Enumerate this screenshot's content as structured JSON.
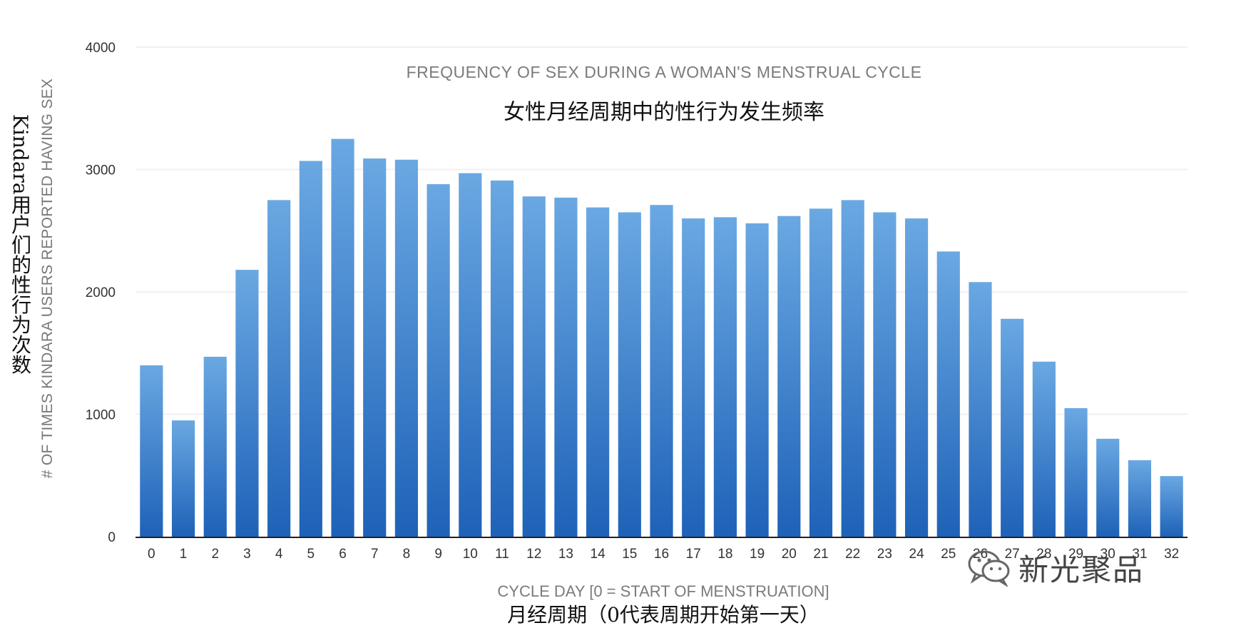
{
  "chart_data": {
    "type": "bar",
    "title": "FREQUENCY OF SEX DURING A WOMAN'S MENSTRUAL CYCLE",
    "subtitle": "女性月经周期中的性行为发生频率",
    "xlabel": "CYCLE DAY [0 = START OF MENSTRUATION]",
    "xlabel_cn": "月经周期（0代表周期开始第一天）",
    "ylabel": "# OF TIMES KINDARA USERS REPORTED HAVING SEX",
    "ylabel_cn": "Kindara用户们的性行为次数",
    "categories": [
      "0",
      "1",
      "2",
      "3",
      "4",
      "5",
      "6",
      "7",
      "8",
      "9",
      "10",
      "11",
      "12",
      "13",
      "14",
      "15",
      "16",
      "17",
      "18",
      "19",
      "20",
      "21",
      "22",
      "23",
      "24",
      "25",
      "26",
      "27",
      "28",
      "29",
      "30",
      "31",
      "32"
    ],
    "values": [
      1400,
      950,
      1470,
      2180,
      2750,
      3070,
      3250,
      3090,
      3080,
      2880,
      2970,
      2910,
      2780,
      2770,
      2690,
      2650,
      2710,
      2600,
      2610,
      2560,
      2620,
      2680,
      2750,
      2650,
      2600,
      2330,
      2080,
      1780,
      1430,
      1050,
      800,
      625,
      495
    ],
    "ylim": [
      0,
      4000
    ],
    "yticks": [
      "0",
      "1000",
      "2000",
      "3000",
      "4000"
    ],
    "grid": true,
    "legend": "none",
    "bar_color_top": "#6aa8e2",
    "bar_color_bottom": "#1e62b8"
  },
  "watermark": {
    "text": "新光聚品",
    "icon": "wechat-icon"
  }
}
